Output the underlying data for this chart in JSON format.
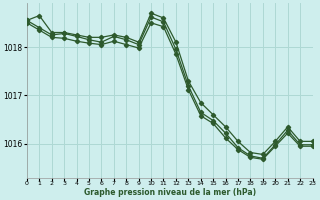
{
  "title": "Graphe pression niveau de la mer (hPa)",
  "bg_color": "#ceeeed",
  "grid_color": "#aed8d4",
  "line_color": "#2d5a2d",
  "xlim": [
    0,
    23
  ],
  "ylim": [
    1015.3,
    1018.9
  ],
  "yticks": [
    1016,
    1017,
    1018
  ],
  "xticks": [
    0,
    1,
    2,
    3,
    4,
    5,
    6,
    7,
    8,
    9,
    10,
    11,
    12,
    13,
    14,
    15,
    16,
    17,
    18,
    19,
    20,
    21,
    22,
    23
  ],
  "line1_x": [
    0,
    1,
    2,
    3,
    4,
    5,
    6,
    7,
    8,
    9,
    10,
    11,
    12,
    13,
    14,
    15,
    16,
    17,
    18,
    19,
    20,
    21,
    22,
    23
  ],
  "line1_y": [
    1018.55,
    1018.65,
    1018.3,
    1018.3,
    1018.25,
    1018.2,
    1018.2,
    1018.25,
    1018.2,
    1018.1,
    1018.7,
    1018.6,
    1018.1,
    1017.3,
    1016.85,
    1016.6,
    1016.35,
    1016.05,
    1015.82,
    1015.78,
    1016.05,
    1016.35,
    1016.05,
    1016.05
  ],
  "line2_x": [
    0,
    1,
    2,
    3,
    4,
    5,
    6,
    7,
    8,
    9,
    10,
    11,
    12,
    13,
    14,
    15,
    16,
    17,
    18,
    19,
    20,
    21,
    22,
    23
  ],
  "line2_y": [
    1018.55,
    1018.4,
    1018.25,
    1018.28,
    1018.22,
    1018.15,
    1018.1,
    1018.22,
    1018.15,
    1018.05,
    1018.62,
    1018.52,
    1017.95,
    1017.2,
    1016.65,
    1016.48,
    1016.22,
    1015.92,
    1015.75,
    1015.7,
    1015.98,
    1016.28,
    1015.98,
    1015.98
  ],
  "line3_x": [
    0,
    1,
    2,
    3,
    4,
    5,
    6,
    7,
    8,
    9,
    10,
    11,
    12,
    13,
    14,
    15,
    16,
    17,
    18,
    19,
    20,
    21,
    22,
    23
  ],
  "line3_y": [
    1018.5,
    1018.35,
    1018.2,
    1018.18,
    1018.12,
    1018.08,
    1018.05,
    1018.12,
    1018.05,
    1017.98,
    1018.5,
    1018.42,
    1017.85,
    1017.12,
    1016.58,
    1016.42,
    1016.12,
    1015.88,
    1015.72,
    1015.68,
    1015.95,
    1016.22,
    1015.95,
    1015.95
  ]
}
